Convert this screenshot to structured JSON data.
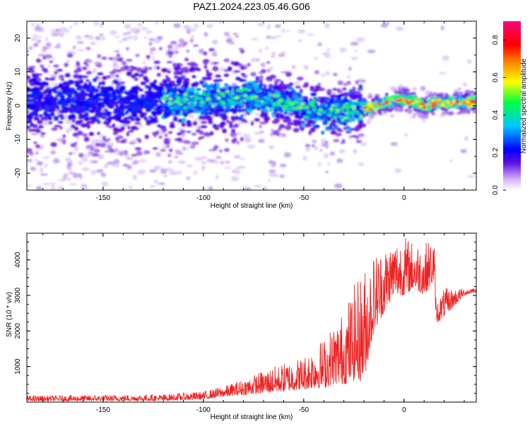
{
  "chart_data": [
    {
      "type": "heatmap",
      "title": "PAZ1.2024.223.05.46.G06",
      "xlabel": "Height of straight line (km)",
      "ylabel": "Frequency (Hz)",
      "xlim": [
        -188,
        36
      ],
      "ylim": [
        -25,
        25
      ],
      "x_ticks": [
        -150,
        -100,
        -50,
        0
      ],
      "y_ticks": [
        -20,
        -10,
        0,
        10,
        20
      ],
      "colorbar": {
        "label": "Normalized spectral amplitude",
        "range": [
          0.0,
          0.9
        ],
        "ticks": [
          0.0,
          0.2,
          0.4,
          0.6,
          0.8
        ],
        "colormap": [
          "#ffffff",
          "#d8b8f8",
          "#6010e0",
          "#0000ff",
          "#00c8ff",
          "#00ff40",
          "#ffff00",
          "#ff8000",
          "#ff0000",
          "#ff0080"
        ]
      },
      "ridge": {
        "description_points_x": [
          -185,
          -150,
          -120,
          -100,
          -80,
          -60,
          -40,
          -20,
          -10,
          0,
          10,
          20,
          35
        ],
        "description_points_y": [
          2,
          1,
          1,
          2,
          3,
          1,
          -2,
          -1,
          1,
          2,
          0,
          1,
          1
        ]
      }
    },
    {
      "type": "line",
      "xlabel": "Height of straight line (km)",
      "ylabel": "SNR (10 * v/v)",
      "xlim": [
        -188,
        36
      ],
      "ylim": [
        0,
        4750
      ],
      "x_ticks": [
        -150,
        -100,
        -50,
        0
      ],
      "y_ticks": [
        1000,
        2000,
        3000,
        4000
      ],
      "color": "#ee2222",
      "envelope_x": [
        -188,
        -120,
        -100,
        -90,
        -80,
        -70,
        -60,
        -50,
        -45,
        -40,
        -35,
        -30,
        -25,
        -20,
        -15,
        -10,
        -5,
        0,
        5,
        10,
        15,
        16,
        20,
        30,
        36
      ],
      "envelope_low": [
        30,
        40,
        80,
        150,
        200,
        250,
        300,
        350,
        400,
        400,
        500,
        500,
        600,
        600,
        2000,
        2500,
        3000,
        3000,
        3200,
        3000,
        3400,
        2200,
        2400,
        3000,
        3100
      ],
      "envelope_high": [
        180,
        220,
        300,
        450,
        650,
        900,
        1100,
        1300,
        1600,
        1800,
        2200,
        2600,
        3300,
        3800,
        4200,
        4400,
        4600,
        4700,
        4500,
        4500,
        4600,
        2800,
        3200,
        3200,
        3250
      ]
    }
  ]
}
